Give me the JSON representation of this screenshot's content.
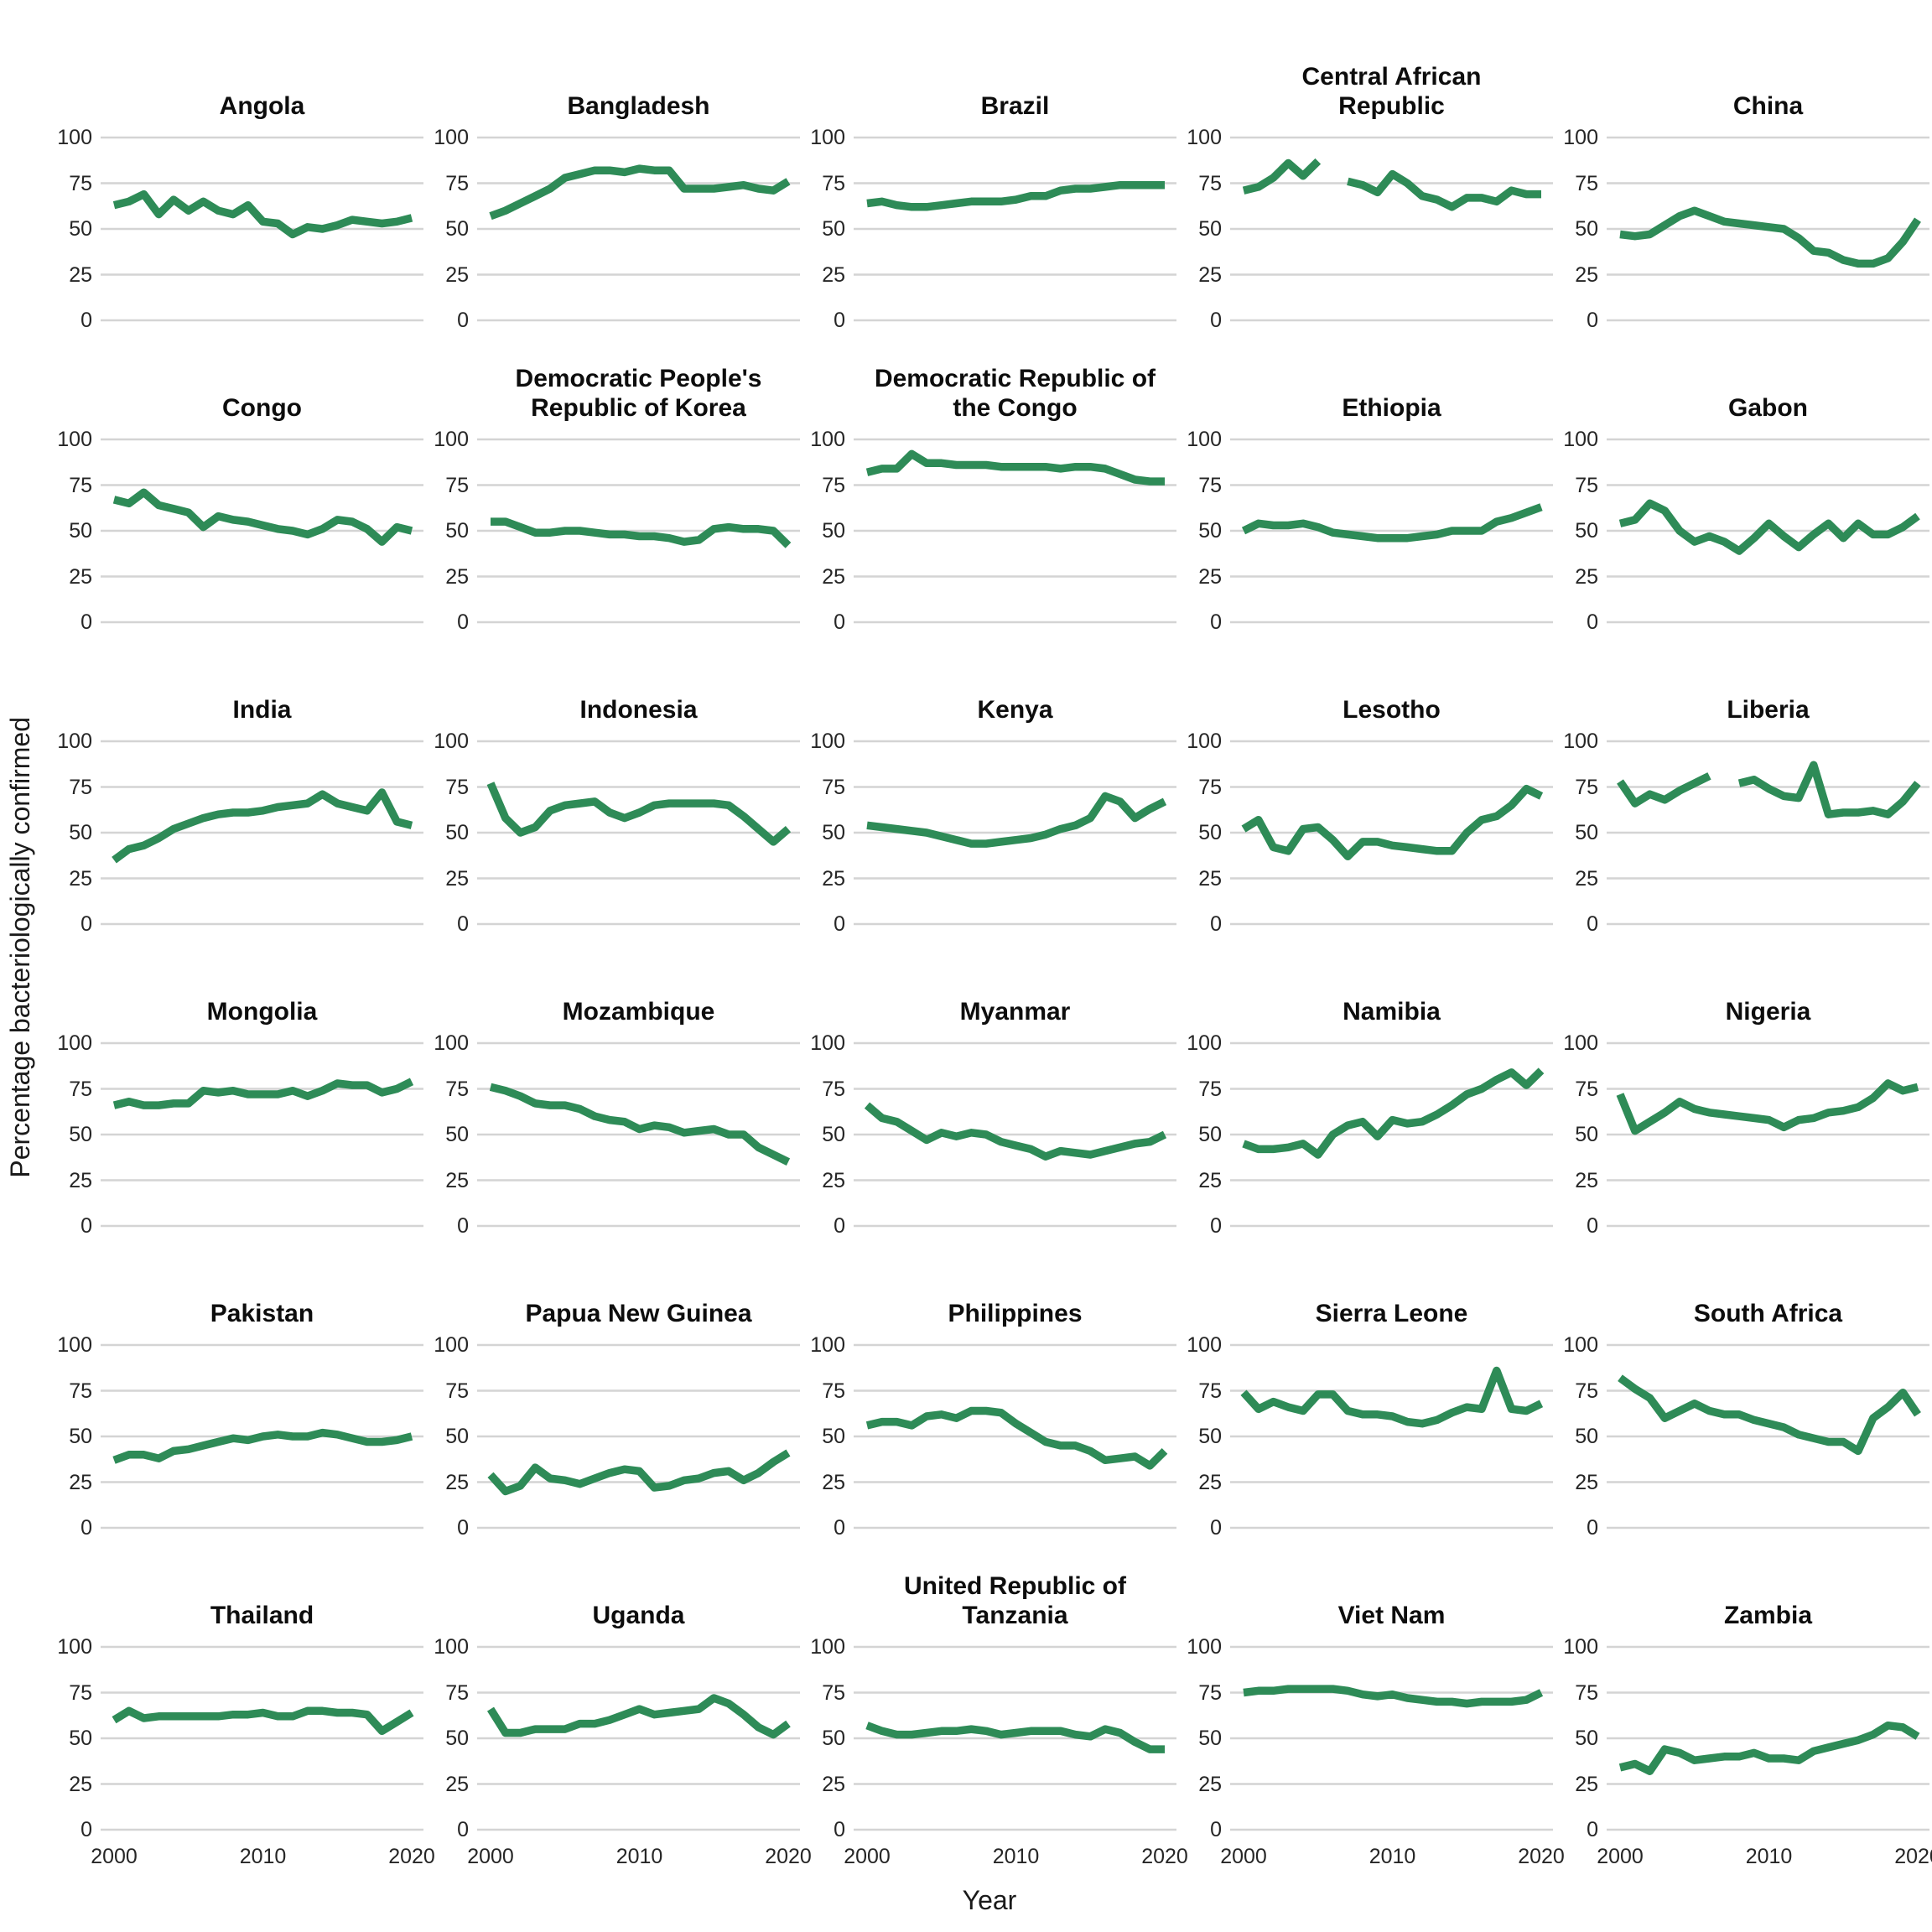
{
  "chart_data": {
    "type": "line",
    "title": "",
    "xlabel": "Year",
    "ylabel": "Percentage bacteriologically confirmed",
    "x_range": [
      2000,
      2020
    ],
    "x_ticks": [
      2000,
      2010,
      2020
    ],
    "y_ticks": [
      0,
      25,
      50,
      75,
      100
    ],
    "ylim": [
      0,
      100
    ],
    "grid": "horizontal-only",
    "legend": "none",
    "line_color": "#2e8b57",
    "gridline_color": "#d4d4d4",
    "facets": [
      {
        "name": "Angola",
        "values": [
          63,
          65,
          69,
          58,
          66,
          60,
          65,
          60,
          58,
          63,
          54,
          53,
          47,
          51,
          50,
          52,
          55,
          54,
          53,
          54,
          56
        ]
      },
      {
        "name": "Bangladesh",
        "values": [
          57,
          60,
          64,
          68,
          72,
          78,
          80,
          82,
          82,
          81,
          83,
          82,
          82,
          72,
          72,
          72,
          73,
          74,
          72,
          71,
          76
        ]
      },
      {
        "name": "Brazil",
        "values": [
          64,
          65,
          63,
          62,
          62,
          63,
          64,
          65,
          65,
          65,
          66,
          68,
          68,
          71,
          72,
          72,
          73,
          74,
          74,
          74,
          74
        ]
      },
      {
        "name": "Central African Republic",
        "values": [
          71,
          73,
          78,
          86,
          79,
          87,
          null,
          76,
          74,
          70,
          80,
          75,
          68,
          66,
          62,
          67,
          67,
          65,
          71,
          69,
          69
        ]
      },
      {
        "name": "China",
        "values": [
          47,
          46,
          47,
          52,
          57,
          60,
          57,
          54,
          53,
          52,
          51,
          50,
          45,
          38,
          37,
          33,
          31,
          31,
          34,
          43,
          55
        ]
      },
      {
        "name": "Congo",
        "values": [
          67,
          65,
          71,
          64,
          62,
          60,
          52,
          58,
          56,
          55,
          53,
          51,
          50,
          48,
          51,
          56,
          55,
          51,
          44,
          52,
          50
        ]
      },
      {
        "name": "Democratic People's Republic of Korea",
        "values": [
          55,
          55,
          52,
          49,
          49,
          50,
          50,
          49,
          48,
          48,
          47,
          47,
          46,
          44,
          45,
          51,
          52,
          51,
          51,
          50,
          42
        ]
      },
      {
        "name": "Democratic Republic of the Congo",
        "values": [
          82,
          84,
          84,
          92,
          87,
          87,
          86,
          86,
          86,
          85,
          85,
          85,
          85,
          84,
          85,
          85,
          84,
          81,
          78,
          77,
          77
        ]
      },
      {
        "name": "Ethiopia",
        "values": [
          50,
          54,
          53,
          53,
          54,
          52,
          49,
          48,
          47,
          46,
          46,
          46,
          47,
          48,
          50,
          50,
          50,
          55,
          57,
          60,
          63
        ]
      },
      {
        "name": "Gabon",
        "values": [
          54,
          56,
          65,
          61,
          50,
          44,
          47,
          44,
          39,
          46,
          54,
          47,
          41,
          48,
          54,
          46,
          54,
          48,
          48,
          52,
          58
        ]
      },
      {
        "name": "India",
        "values": [
          35,
          41,
          43,
          47,
          52,
          55,
          58,
          60,
          61,
          61,
          62,
          64,
          65,
          66,
          71,
          66,
          64,
          62,
          72,
          56,
          54
        ]
      },
      {
        "name": "Indonesia",
        "values": [
          77,
          58,
          50,
          53,
          62,
          65,
          66,
          67,
          61,
          58,
          61,
          65,
          66,
          66,
          66,
          66,
          65,
          59,
          52,
          45,
          52
        ]
      },
      {
        "name": "Kenya",
        "values": [
          54,
          53,
          52,
          51,
          50,
          48,
          46,
          44,
          44,
          45,
          46,
          47,
          49,
          52,
          54,
          58,
          70,
          67,
          58,
          63,
          67
        ]
      },
      {
        "name": "Lesotho",
        "values": [
          52,
          57,
          42,
          40,
          52,
          53,
          46,
          37,
          45,
          45,
          43,
          42,
          41,
          40,
          40,
          50,
          57,
          59,
          65,
          74,
          70
        ]
      },
      {
        "name": "Liberia",
        "values": [
          78,
          66,
          71,
          68,
          73,
          77,
          81,
          null,
          77,
          79,
          74,
          70,
          69,
          87,
          60,
          61,
          61,
          62,
          60,
          67,
          77
        ]
      },
      {
        "name": "Mongolia",
        "values": [
          66,
          68,
          66,
          66,
          67,
          67,
          74,
          73,
          74,
          72,
          72,
          72,
          74,
          71,
          74,
          78,
          77,
          77,
          73,
          75,
          79
        ]
      },
      {
        "name": "Mozambique",
        "values": [
          76,
          74,
          71,
          67,
          66,
          66,
          64,
          60,
          58,
          57,
          53,
          55,
          54,
          51,
          52,
          53,
          50,
          50,
          43,
          39,
          35
        ]
      },
      {
        "name": "Myanmar",
        "values": [
          66,
          59,
          57,
          52,
          47,
          51,
          49,
          51,
          50,
          46,
          44,
          42,
          38,
          41,
          40,
          39,
          41,
          43,
          45,
          46,
          50
        ]
      },
      {
        "name": "Namibia",
        "values": [
          45,
          42,
          42,
          43,
          45,
          39,
          50,
          55,
          57,
          49,
          58,
          56,
          57,
          61,
          66,
          72,
          75,
          80,
          84,
          77,
          85
        ]
      },
      {
        "name": "Nigeria",
        "values": [
          72,
          52,
          57,
          62,
          68,
          64,
          62,
          61,
          60,
          59,
          58,
          54,
          58,
          59,
          62,
          63,
          65,
          70,
          78,
          74,
          76
        ]
      },
      {
        "name": "Pakistan",
        "values": [
          37,
          40,
          40,
          38,
          42,
          43,
          45,
          47,
          49,
          48,
          50,
          51,
          50,
          50,
          52,
          51,
          49,
          47,
          47,
          48,
          50
        ]
      },
      {
        "name": "Papua New Guinea",
        "values": [
          29,
          20,
          23,
          33,
          27,
          26,
          24,
          27,
          30,
          32,
          31,
          22,
          23,
          26,
          27,
          30,
          31,
          26,
          30,
          36,
          41
        ]
      },
      {
        "name": "Philippines",
        "values": [
          56,
          58,
          58,
          56,
          61,
          62,
          60,
          64,
          64,
          63,
          57,
          52,
          47,
          45,
          45,
          42,
          37,
          38,
          39,
          34,
          42
        ]
      },
      {
        "name": "Sierra Leone",
        "values": [
          74,
          65,
          69,
          66,
          64,
          73,
          73,
          64,
          62,
          62,
          61,
          58,
          57,
          59,
          63,
          66,
          65,
          86,
          65,
          64,
          68
        ]
      },
      {
        "name": "South Africa",
        "values": [
          82,
          76,
          71,
          60,
          64,
          68,
          64,
          62,
          62,
          59,
          57,
          55,
          51,
          49,
          47,
          47,
          42,
          60,
          66,
          74,
          62
        ]
      },
      {
        "name": "Thailand",
        "values": [
          60,
          65,
          61,
          62,
          62,
          62,
          62,
          62,
          63,
          63,
          64,
          62,
          62,
          65,
          65,
          64,
          64,
          63,
          54,
          59,
          64
        ]
      },
      {
        "name": "Uganda",
        "values": [
          66,
          53,
          53,
          55,
          55,
          55,
          58,
          58,
          60,
          63,
          66,
          63,
          64,
          65,
          66,
          72,
          69,
          63,
          56,
          52,
          58
        ]
      },
      {
        "name": "United Republic of Tanzania",
        "values": [
          57,
          54,
          52,
          52,
          53,
          54,
          54,
          55,
          54,
          52,
          53,
          54,
          54,
          54,
          52,
          51,
          55,
          53,
          48,
          44,
          44
        ]
      },
      {
        "name": "Viet Nam",
        "values": [
          75,
          76,
          76,
          77,
          77,
          77,
          77,
          76,
          74,
          73,
          74,
          72,
          71,
          70,
          70,
          69,
          70,
          70,
          70,
          71,
          75
        ]
      },
      {
        "name": "Zambia",
        "values": [
          34,
          36,
          32,
          44,
          42,
          38,
          39,
          40,
          40,
          42,
          39,
          39,
          38,
          43,
          45,
          47,
          49,
          52,
          57,
          56,
          51
        ]
      }
    ]
  },
  "layout_info": {
    "columns": 5,
    "rows": 6
  }
}
